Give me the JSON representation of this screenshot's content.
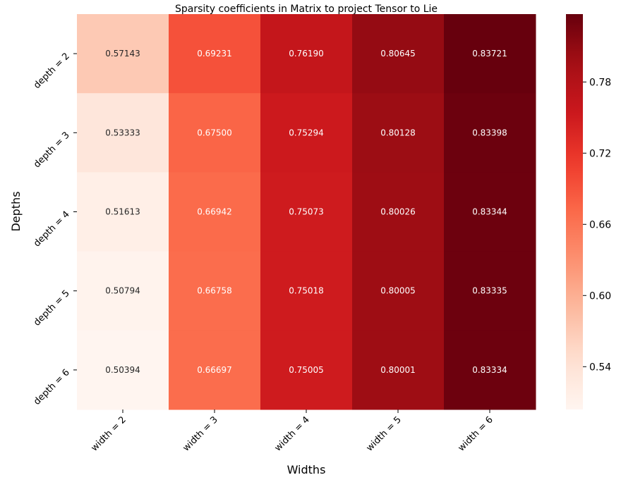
{
  "chart_data": {
    "type": "heatmap",
    "title": "Sparsity coefficients in Matrix to project Tensor to Lie",
    "xlabel": "Widths",
    "ylabel": "Depths",
    "x_categories": [
      "width = 2",
      "width = 3",
      "width = 4",
      "width = 5",
      "width = 6"
    ],
    "y_categories": [
      "depth = 2",
      "depth = 3",
      "depth = 4",
      "depth = 5",
      "depth = 6"
    ],
    "values": [
      [
        0.57143,
        0.69231,
        0.7619,
        0.80645,
        0.83721
      ],
      [
        0.53333,
        0.675,
        0.75294,
        0.80128,
        0.83398
      ],
      [
        0.51613,
        0.66942,
        0.75073,
        0.80026,
        0.83344
      ],
      [
        0.50794,
        0.66758,
        0.75018,
        0.80005,
        0.83335
      ],
      [
        0.50394,
        0.66697,
        0.75005,
        0.80001,
        0.83334
      ]
    ],
    "value_labels": [
      [
        "0.57143",
        "0.69231",
        "0.76190",
        "0.80645",
        "0.83721"
      ],
      [
        "0.53333",
        "0.67500",
        "0.75294",
        "0.80128",
        "0.83398"
      ],
      [
        "0.51613",
        "0.66942",
        "0.75073",
        "0.80026",
        "0.83344"
      ],
      [
        "0.50794",
        "0.66758",
        "0.75018",
        "0.80005",
        "0.83335"
      ],
      [
        "0.50394",
        "0.66697",
        "0.75005",
        "0.80001",
        "0.83334"
      ]
    ],
    "colormap": "Reds",
    "colorbar": {
      "range": [
        0.50394,
        0.83721
      ],
      "ticks": [
        0.54,
        0.6,
        0.66,
        0.72,
        0.78
      ],
      "tick_labels": [
        "0.54",
        "0.60",
        "0.66",
        "0.72",
        "0.78"
      ]
    },
    "colors": {
      "low": "#fff5f0",
      "high": "#67000d"
    }
  }
}
